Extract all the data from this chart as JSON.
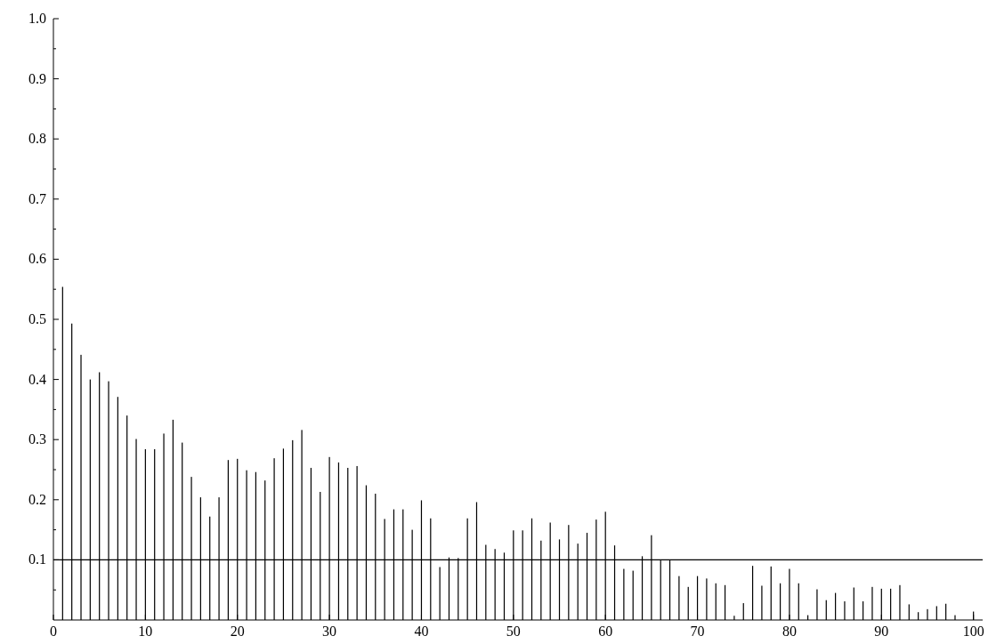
{
  "chart_data": {
    "type": "bar",
    "x": [
      1,
      2,
      3,
      4,
      5,
      6,
      7,
      8,
      9,
      10,
      11,
      12,
      13,
      14,
      15,
      16,
      17,
      18,
      19,
      20,
      21,
      22,
      23,
      24,
      25,
      26,
      27,
      28,
      29,
      30,
      31,
      32,
      33,
      34,
      35,
      36,
      37,
      38,
      39,
      40,
      41,
      42,
      43,
      44,
      45,
      46,
      47,
      48,
      49,
      50,
      51,
      52,
      53,
      54,
      55,
      56,
      57,
      58,
      59,
      60,
      61,
      62,
      63,
      64,
      65,
      66,
      67,
      68,
      69,
      70,
      71,
      72,
      73,
      74,
      75,
      76,
      77,
      78,
      79,
      80,
      81,
      82,
      83,
      84,
      85,
      86,
      87,
      88,
      89,
      90,
      91,
      92,
      93,
      94,
      95,
      96,
      97,
      98,
      99,
      100
    ],
    "values": [
      0.554,
      0.493,
      0.441,
      0.4,
      0.412,
      0.397,
      0.371,
      0.34,
      0.301,
      0.284,
      0.284,
      0.31,
      0.333,
      0.295,
      0.238,
      0.204,
      0.172,
      0.204,
      0.266,
      0.268,
      0.249,
      0.246,
      0.232,
      0.269,
      0.285,
      0.299,
      0.316,
      0.253,
      0.213,
      0.271,
      0.262,
      0.253,
      0.256,
      0.224,
      0.21,
      0.168,
      0.184,
      0.184,
      0.15,
      0.199,
      0.169,
      0.088,
      0.104,
      0.103,
      0.169,
      0.196,
      0.125,
      0.118,
      0.112,
      0.149,
      0.149,
      0.169,
      0.132,
      0.162,
      0.134,
      0.158,
      0.127,
      0.145,
      0.167,
      0.18,
      0.124,
      0.085,
      0.082,
      0.106,
      0.141,
      0.099,
      0.099,
      0.073,
      0.055,
      0.073,
      0.069,
      0.061,
      0.058,
      0.007,
      0.028,
      0.09,
      0.057,
      0.089,
      0.061,
      0.085,
      0.061,
      0.008,
      0.051,
      0.033,
      0.045,
      0.031,
      0.054,
      0.031,
      0.055,
      0.052,
      0.052,
      0.058,
      0.026,
      0.013,
      0.018,
      0.023,
      0.027,
      0.008,
      0,
      0.014
    ],
    "color": "#000000",
    "xlim": [
      0,
      101
    ],
    "xticks": [
      0,
      10,
      20,
      30,
      40,
      50,
      60,
      70,
      80,
      90,
      100
    ],
    "ylim": [
      0,
      1.0
    ],
    "yticks": [
      {
        "value": 0.05,
        "label": null
      },
      0.1,
      {
        "value": 0.15,
        "label": null
      },
      0.2,
      {
        "value": 0.25,
        "label": null
      },
      0.3,
      {
        "value": 0.35,
        "label": null
      },
      0.4,
      {
        "value": 0.45,
        "label": null
      },
      0.5,
      {
        "value": 0.55,
        "label": null
      },
      0.6,
      {
        "value": 0.65,
        "label": null
      },
      0.7,
      {
        "value": 0.75,
        "label": null
      },
      0.8,
      {
        "value": 0.85,
        "label": null
      },
      0.9,
      {
        "value": 0.95,
        "label": null
      },
      {
        "value": 1.0,
        "label": "1.0"
      }
    ],
    "ref_lines": [
      {
        "axis": "y",
        "value": 0.1,
        "color": "#000000"
      }
    ],
    "grid": false
  }
}
